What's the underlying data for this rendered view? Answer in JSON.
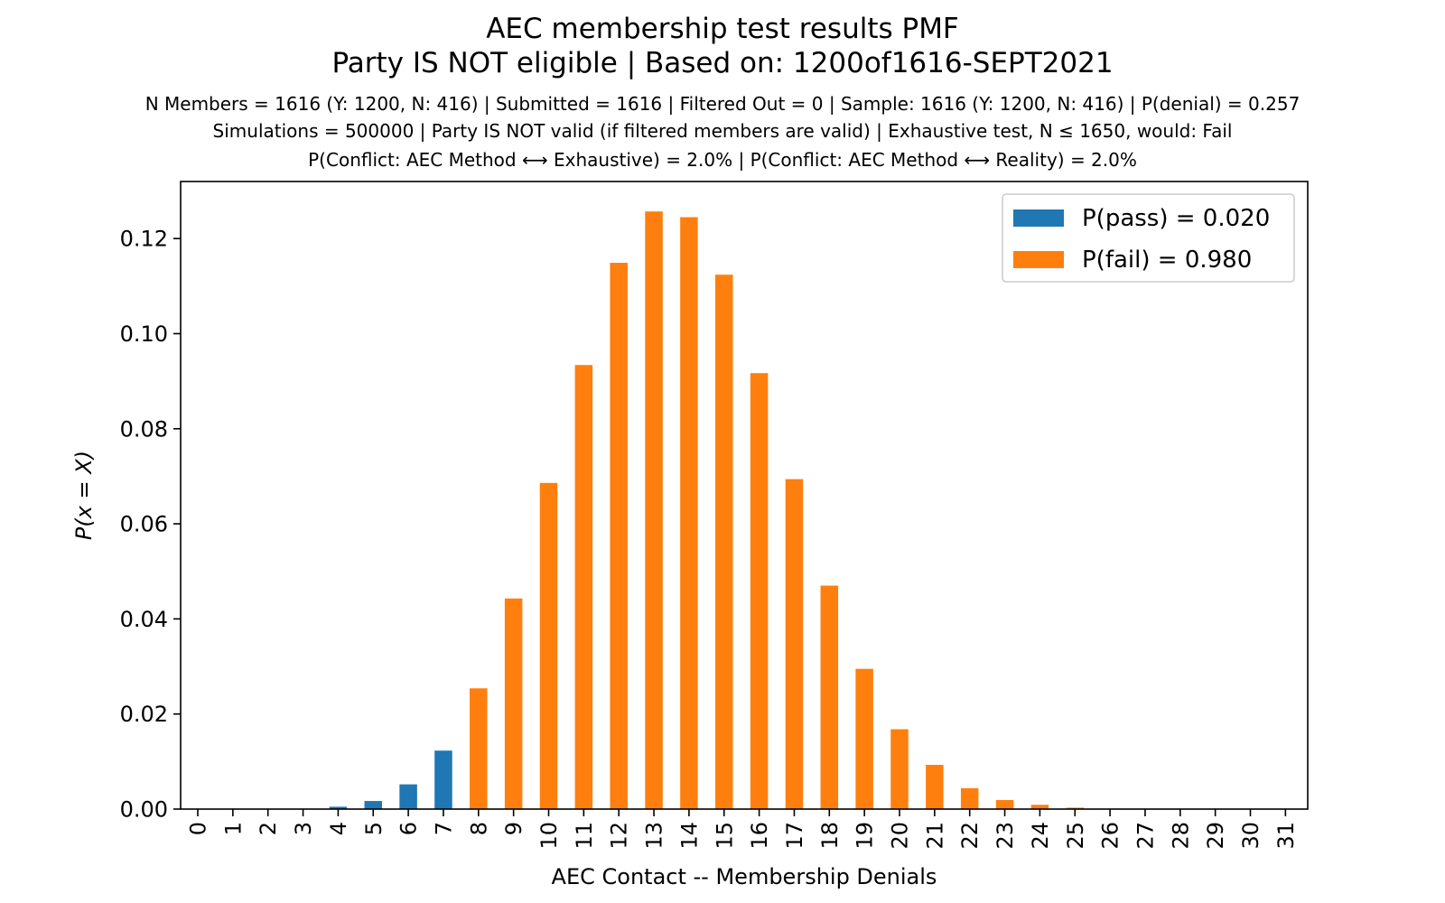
{
  "chart_data": {
    "type": "bar",
    "title": "AEC membership test results PMF",
    "title_line2": "Party IS NOT eligible | Based on: 1200of1616-SEPT2021",
    "subtitle_lines": [
      "N Members = 1616 (Y: 1200, N: 416) | Submitted = 1616 | Filtered Out = 0 | Sample: 1616 (Y: 1200, N: 416) | P(denial) = 0.257",
      "Simulations = 500000 | Party IS NOT valid (if filtered members are valid) | Exhaustive test, N ≤ 1650, would: Fail",
      "P(Conflict: AEC Method ⟷ Exhaustive) = 2.0% | P(Conflict: AEC Method ⟷ Reality) = 2.0%"
    ],
    "xlabel": "AEC Contact -- Membership Denials",
    "ylabel": "P(x = X)",
    "ylim": [
      0,
      0.132
    ],
    "yticks": [
      "0.00",
      "0.02",
      "0.04",
      "0.06",
      "0.08",
      "0.10",
      "0.12"
    ],
    "categories": [
      "0",
      "1",
      "2",
      "3",
      "4",
      "5",
      "6",
      "7",
      "8",
      "9",
      "10",
      "11",
      "12",
      "13",
      "14",
      "15",
      "16",
      "17",
      "18",
      "19",
      "20",
      "21",
      "22",
      "23",
      "24",
      "25",
      "26",
      "27",
      "28",
      "29",
      "30",
      "31"
    ],
    "series": [
      {
        "name": "P(pass) = 0.020",
        "color": "#1f77b4",
        "values": [
          0.0,
          0.0,
          0.0,
          5e-05,
          0.0005,
          0.0017,
          0.0052,
          0.0123,
          0,
          0,
          0,
          0,
          0,
          0,
          0,
          0,
          0,
          0,
          0,
          0,
          0,
          0,
          0,
          0,
          0,
          0,
          0,
          0,
          0,
          0,
          0,
          0
        ]
      },
      {
        "name": "P(fail) = 0.980",
        "color": "#ff7f0e",
        "values": [
          0,
          0,
          0,
          0,
          0,
          0,
          0,
          0,
          0.0254,
          0.0443,
          0.0686,
          0.0934,
          0.1149,
          0.1257,
          0.1245,
          0.1124,
          0.0917,
          0.0694,
          0.047,
          0.0295,
          0.0168,
          0.0093,
          0.0044,
          0.0019,
          0.0009,
          0.0003,
          0.0001,
          3e-05,
          1e-05,
          0.0,
          0.0,
          0.0
        ]
      }
    ],
    "legend_position": "top-right",
    "grid": false
  }
}
